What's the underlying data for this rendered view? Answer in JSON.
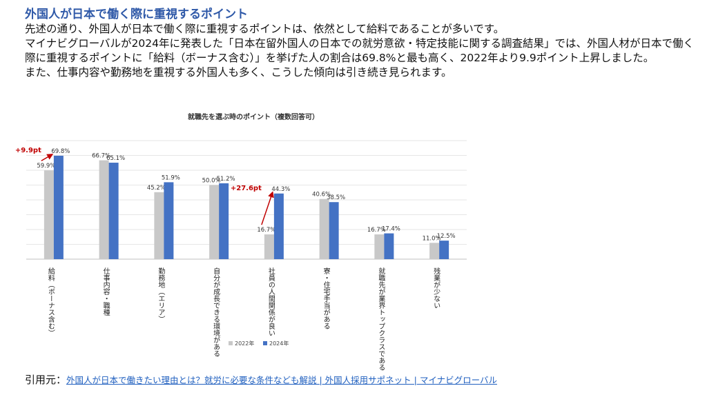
{
  "heading": "外国人が日本で働く際に重視するポイント",
  "paragraphs": [
    "先述の通り、外国人が日本で働く際に重視するポイントは、依然として給料であることが多いです。",
    "マイナビグローバルが2024年に発表した「日本在留外国人の日本での就労意欲・特定技能に関する調査結果」では、外国人材が日本で働く際に重視するポイントに「給料（ボーナス含む）」を挙げた人の割合は69.8%と最も高く、2022年より9.9ポイント上昇しました。",
    "また、仕事内容や勤務地を重視する外国人も多く、こうした傾向は引き続き見られます。"
  ],
  "citation": {
    "prefix": "引用元：",
    "link_text": "外国人が日本で働きたい理由とは？就労に必要な条件なども解説 | 外国人採用サポネット | マイナビグローバル"
  },
  "chart_data": {
    "type": "bar",
    "title": "就職先を選ぶ時のポイント（複数回答可）",
    "categories": [
      "給料（ボーナス含む）",
      "仕事内容・職種",
      "勤務地（エリア）",
      "自分が成長できる環境がある",
      "社員の人間関係が良い",
      "寮・住宅手当がある",
      "就職先が業界トップクラスである",
      "残業が少ない"
    ],
    "series": [
      {
        "name": "2022年",
        "values": [
          59.9,
          66.7,
          45.2,
          50.0,
          16.7,
          40.6,
          16.7,
          11.0
        ],
        "labels": [
          "59.9%",
          "66.7%",
          "45.2%",
          "50.0%",
          "16.7%",
          "40.6%",
          "16.7%",
          "11.0%"
        ],
        "color": "#c8c8c8"
      },
      {
        "name": "2024年",
        "values": [
          69.8,
          65.1,
          51.9,
          51.2,
          44.3,
          38.5,
          17.4,
          12.5
        ],
        "labels": [
          "69.8%",
          "65.1%",
          "51.9%",
          "51.2%",
          "44.3%",
          "38.5%",
          "17.4%",
          "12.5%"
        ],
        "color": "#4472c4"
      }
    ],
    "ylim": [
      0,
      80
    ],
    "grid": true,
    "legend_position": "bottom",
    "annotations": [
      {
        "text": "+9.9pt",
        "category_index": 0,
        "color": "#c00000"
      },
      {
        "text": "+27.6pt",
        "category_index": 4,
        "color": "#c00000"
      }
    ]
  }
}
